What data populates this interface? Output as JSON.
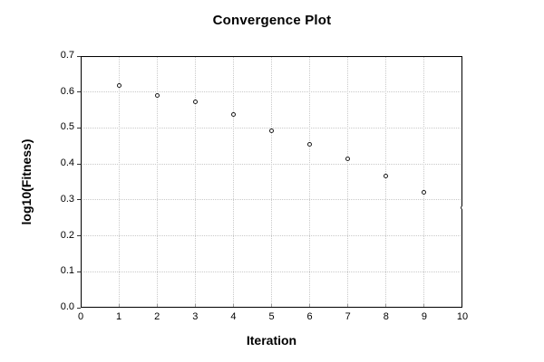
{
  "chart_data": {
    "type": "scatter",
    "title": "Convergence Plot",
    "xlabel": "Iteration",
    "ylabel": "log10(Fitness)",
    "x": [
      1,
      2,
      3,
      4,
      5,
      6,
      7,
      8,
      9,
      10
    ],
    "y": [
      0.618,
      0.59,
      0.573,
      0.537,
      0.493,
      0.455,
      0.415,
      0.367,
      0.321,
      0.277
    ],
    "xlim": [
      0,
      10
    ],
    "ylim": [
      0,
      0.7
    ],
    "x_ticks": [
      0,
      1,
      2,
      3,
      4,
      5,
      6,
      7,
      8,
      9,
      10
    ],
    "y_ticks": [
      0.0,
      0.1,
      0.2,
      0.3,
      0.4,
      0.5,
      0.6,
      0.7
    ],
    "x_tick_labels": [
      "0",
      "1",
      "2",
      "3",
      "4",
      "5",
      "6",
      "7",
      "8",
      "9",
      "10"
    ],
    "y_tick_labels": [
      "0.0",
      "0.1",
      "0.2",
      "0.3",
      "0.4",
      "0.5",
      "0.6",
      "0.7"
    ],
    "grid": true,
    "legend": null,
    "marker": "open-circle",
    "colors": {
      "background": "#ffffff",
      "axis": "#000000",
      "grid": "#c9c9c9",
      "marker_stroke": "#1a1a1a",
      "marker_fill": "#ffffff",
      "text": "#000000"
    }
  }
}
